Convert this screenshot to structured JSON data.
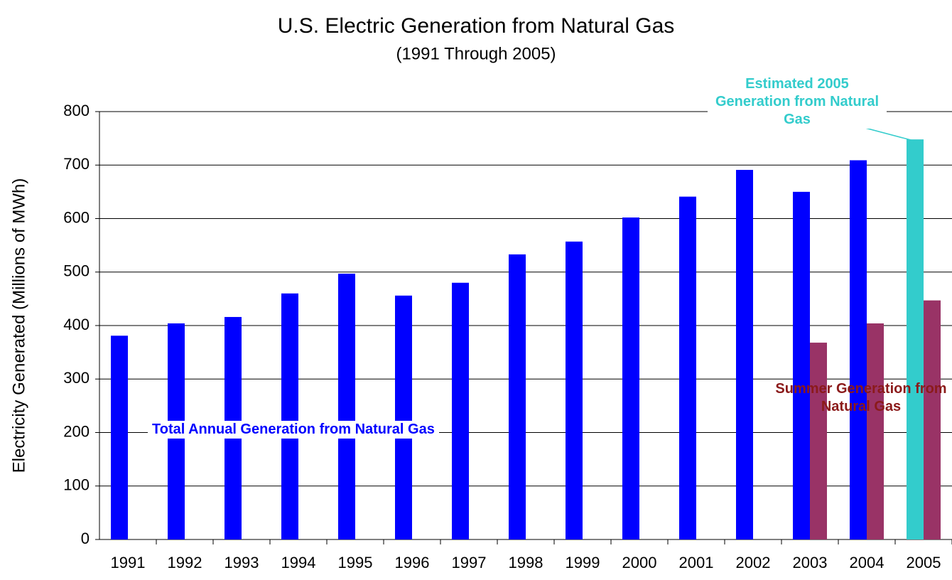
{
  "chart_data": {
    "type": "bar",
    "title": "U.S. Electric Generation from Natural Gas",
    "subtitle": "(1991 Through 2005)",
    "y_label": "Electricity Generated (Millions of MWh)",
    "categories": [
      "1991",
      "1992",
      "1993",
      "1994",
      "1995",
      "1996",
      "1997",
      "1998",
      "1999",
      "2000",
      "2001",
      "2002",
      "2003",
      "2004",
      "2005"
    ],
    "series": [
      {
        "name": "Total Annual Generation from Natural Gas",
        "color": "#0000ff",
        "values": [
          381,
          404,
          416,
          460,
          497,
          456,
          480,
          533,
          557,
          602,
          641,
          691,
          650,
          709,
          null
        ]
      },
      {
        "name": "Estimated 2005 Generation from Natural Gas",
        "color": "#33cccc",
        "values": [
          null,
          null,
          null,
          null,
          null,
          null,
          null,
          null,
          null,
          null,
          null,
          null,
          null,
          null,
          748
        ]
      },
      {
        "name": "Summer Generation from Natural Gas",
        "color": "#993366",
        "values": [
          null,
          null,
          null,
          null,
          null,
          null,
          null,
          null,
          null,
          null,
          null,
          null,
          368,
          404,
          447
        ]
      }
    ],
    "ylim": [
      0,
      800
    ],
    "yticks": [
      0,
      100,
      200,
      300,
      400,
      500,
      600,
      700,
      800
    ],
    "grid": true
  }
}
